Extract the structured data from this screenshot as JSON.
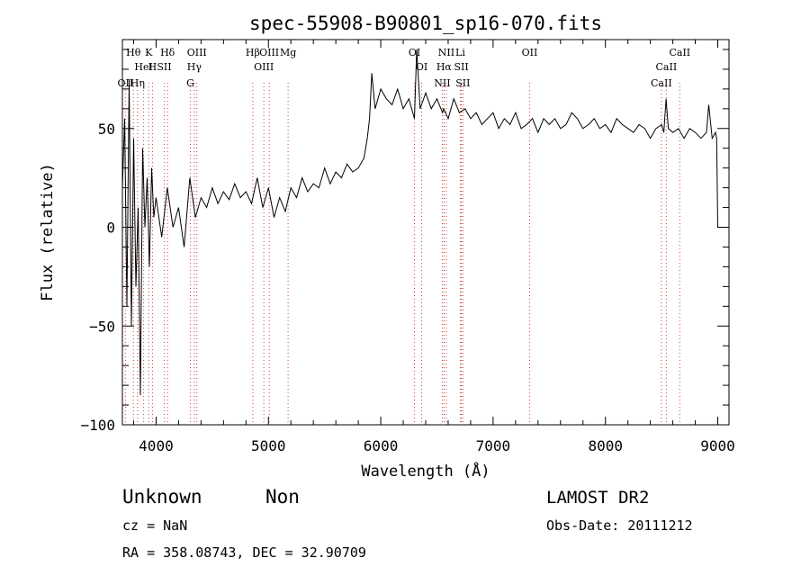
{
  "chart_data": {
    "type": "line",
    "title": "spec-55908-B90801_sp16-070.fits",
    "xlabel": "Wavelength (Å)",
    "ylabel": "Flux (relative)",
    "xlim": [
      3700,
      9100
    ],
    "ylim": [
      -100,
      95
    ],
    "xticks": [
      4000,
      5000,
      6000,
      7000,
      8000,
      9000
    ],
    "yticks": [
      -100,
      -50,
      0,
      50
    ],
    "grid": false,
    "series": [
      {
        "x": [
          3700,
          3720,
          3740,
          3760,
          3780,
          3800,
          3820,
          3840,
          3860,
          3880,
          3900,
          3920,
          3940,
          3960,
          3980,
          4000,
          4050,
          4100,
          4150,
          4200,
          4250,
          4300,
          4350,
          4400,
          4450,
          4500,
          4550,
          4600,
          4650,
          4700,
          4750,
          4800,
          4850,
          4900,
          4950,
          5000,
          5050,
          5100,
          5150,
          5200,
          5250,
          5300,
          5350,
          5400,
          5450,
          5500,
          5550,
          5600,
          5650,
          5700,
          5750,
          5800,
          5850,
          5880,
          5900,
          5920,
          5950,
          6000,
          6050,
          6100,
          6150,
          6200,
          6250,
          6300,
          6320,
          6350,
          6400,
          6450,
          6500,
          6550,
          6560,
          6600,
          6650,
          6700,
          6750,
          6800,
          6850,
          6900,
          6950,
          7000,
          7050,
          7100,
          7150,
          7200,
          7250,
          7300,
          7350,
          7400,
          7450,
          7500,
          7550,
          7600,
          7650,
          7700,
          7750,
          7800,
          7850,
          7900,
          7950,
          8000,
          8050,
          8100,
          8150,
          8200,
          8250,
          8300,
          8350,
          8400,
          8450,
          8500,
          8520,
          8540,
          8560,
          8600,
          8650,
          8700,
          8750,
          8800,
          8850,
          8900,
          8920,
          8950,
          8980,
          8990,
          9000
        ],
        "y": [
          20,
          55,
          -40,
          75,
          -50,
          45,
          -30,
          10,
          -85,
          40,
          0,
          25,
          -20,
          30,
          5,
          15,
          -5,
          20,
          0,
          10,
          -10,
          25,
          5,
          15,
          10,
          20,
          12,
          18,
          14,
          22,
          15,
          18,
          12,
          25,
          10,
          20,
          5,
          15,
          8,
          20,
          15,
          25,
          18,
          22,
          20,
          30,
          22,
          28,
          25,
          32,
          28,
          30,
          35,
          45,
          55,
          78,
          60,
          70,
          65,
          62,
          70,
          60,
          65,
          55,
          90,
          60,
          68,
          60,
          65,
          58,
          60,
          55,
          65,
          58,
          60,
          55,
          58,
          52,
          55,
          58,
          50,
          55,
          52,
          58,
          50,
          52,
          55,
          48,
          55,
          52,
          55,
          50,
          52,
          58,
          55,
          50,
          52,
          55,
          50,
          52,
          48,
          55,
          52,
          50,
          48,
          52,
          50,
          45,
          50,
          52,
          48,
          65,
          50,
          48,
          50,
          45,
          50,
          48,
          45,
          48,
          62,
          45,
          48,
          45,
          0
        ]
      }
    ],
    "lines": [
      {
        "label": "Hθ",
        "x": 3798
      },
      {
        "label": "K",
        "x": 3934
      },
      {
        "label": "Hδ",
        "x": 4102
      },
      {
        "label": "HeI",
        "x": 3889
      },
      {
        "label": "SII",
        "x": 4072
      },
      {
        "label": "OII",
        "x": 3727
      },
      {
        "label": "Hη",
        "x": 3835
      },
      {
        "label": "H",
        "x": 3968
      },
      {
        "label": "OIII",
        "x": 4363
      },
      {
        "label": "Hγ",
        "x": 4340
      },
      {
        "label": "G",
        "x": 4305
      },
      {
        "label": "OIII",
        "x": 5007
      },
      {
        "label": "OIII",
        "x": 4959
      },
      {
        "label": "Hβ",
        "x": 4861
      },
      {
        "label": "Mg",
        "x": 5175
      },
      {
        "label": "OI",
        "x": 6300
      },
      {
        "label": "OI",
        "x": 6364
      },
      {
        "label": "NII",
        "x": 6584
      },
      {
        "label": "SII",
        "x": 6717
      },
      {
        "label": "Hα",
        "x": 6563
      },
      {
        "label": "SII",
        "x": 6731
      },
      {
        "label": "NII",
        "x": 6548
      },
      {
        "label": "Li",
        "x": 6708
      },
      {
        "label": "OII",
        "x": 7325
      },
      {
        "label": "CaII",
        "x": 8662
      },
      {
        "label": "CaII",
        "x": 8542
      },
      {
        "label": "CaII",
        "x": 8498
      }
    ]
  },
  "footer": {
    "object_class": "Unknown",
    "subclass": "Non",
    "cz": "cz = NaN",
    "coords": "RA = 358.08743, DEC =  32.90709",
    "survey": "LAMOST DR2",
    "obs_date": "Obs-Date: 20111212"
  }
}
